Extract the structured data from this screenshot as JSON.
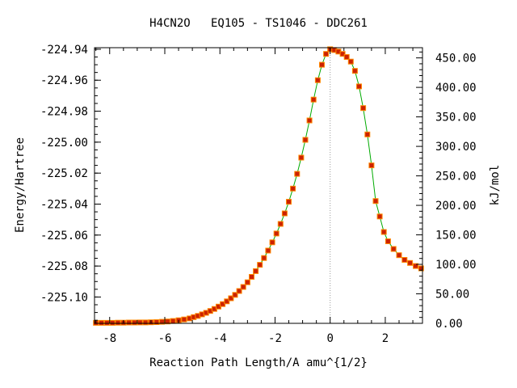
{
  "chart_data": {
    "type": "line",
    "title": "H4CN2O   EQ105 - TS1046 - DDC261",
    "xlabel": "Reaction Path Length/A amu^{1/2}",
    "ylabel": "Energy/Hartree",
    "y2label": "kJ/mol",
    "xlim": [
      -8.55,
      3.35
    ],
    "ylim": [
      -225.117,
      -224.939
    ],
    "y2lim": [
      0.0,
      467.3
    ],
    "x_ticks": [
      -8,
      -6,
      -4,
      -2,
      0,
      2
    ],
    "x_tick_labels": [
      "-8",
      "-6",
      "-4",
      "-2",
      "0",
      "2"
    ],
    "y_ticks": [
      -224.94,
      -224.96,
      -224.98,
      -225.0,
      -225.02,
      -225.04,
      -225.06,
      -225.08,
      -225.1
    ],
    "y_tick_labels": [
      "-224.94",
      "-224.96",
      "-224.98",
      "-225.00",
      "-225.02",
      "-225.04",
      "-225.06",
      "-225.08",
      "-225.10"
    ],
    "y2_ticks": [
      0,
      50,
      100,
      150,
      200,
      250,
      300,
      350,
      400,
      450
    ],
    "y2_tick_labels": [
      "0.00",
      "50.00",
      "100.00",
      "150.00",
      "200.00",
      "250.00",
      "300.00",
      "350.00",
      "400.00",
      "450.00"
    ],
    "ts_marker_x": 0,
    "grid": false,
    "legend": "none",
    "colors": {
      "line": "#00aa00",
      "marker": "#cc2200",
      "marker_edge": "#ff8800",
      "ts_line": "#999999",
      "axis": "#000000"
    },
    "series": [
      {
        "x": [
          -8.5,
          -8.3,
          -8.1,
          -7.9,
          -7.7,
          -7.5,
          -7.3,
          -7.1,
          -6.9,
          -6.7,
          -6.5,
          -6.3,
          -6.1,
          -5.9,
          -5.7,
          -5.5,
          -5.3,
          -5.1,
          -4.95,
          -4.8,
          -4.65,
          -4.5,
          -4.35,
          -4.2,
          -4.05,
          -3.9,
          -3.75,
          -3.6,
          -3.45,
          -3.3,
          -3.15,
          -3.0,
          -2.85,
          -2.7,
          -2.55,
          -2.4,
          -2.25,
          -2.1,
          -1.95,
          -1.8,
          -1.65,
          -1.5,
          -1.35,
          -1.2,
          -1.05,
          -0.9,
          -0.75,
          -0.6,
          -0.45,
          -0.3,
          -0.15,
          0.0,
          0.15,
          0.3,
          0.45,
          0.6,
          0.75,
          0.9,
          1.05,
          1.2,
          1.35,
          1.5,
          1.65,
          1.8,
          1.95,
          2.1,
          2.3,
          2.5,
          2.7,
          2.9,
          3.1,
          3.3
        ],
        "y": [
          -225.1167,
          -225.1167,
          -225.1167,
          -225.1167,
          -225.1166,
          -225.1166,
          -225.1165,
          -225.1165,
          -225.1164,
          -225.1164,
          -225.1163,
          -225.1162,
          -225.116,
          -225.1158,
          -225.1155,
          -225.115,
          -225.1145,
          -225.1138,
          -225.113,
          -225.1122,
          -225.1112,
          -225.1102,
          -225.109,
          -225.1077,
          -225.1062,
          -225.1046,
          -225.1028,
          -225.1008,
          -225.0986,
          -225.0961,
          -225.0935,
          -225.0905,
          -225.087,
          -225.0833,
          -225.0792,
          -225.0748,
          -225.07,
          -225.0647,
          -225.059,
          -225.0528,
          -225.046,
          -225.0385,
          -225.03,
          -225.0205,
          -225.01,
          -224.9985,
          -224.986,
          -224.9725,
          -224.96,
          -224.95,
          -224.943,
          -224.94,
          -224.9405,
          -224.9415,
          -224.943,
          -224.945,
          -224.948,
          -224.954,
          -224.964,
          -224.978,
          -224.995,
          -225.015,
          -225.038,
          -225.048,
          -225.058,
          -225.064,
          -225.069,
          -225.073,
          -225.076,
          -225.078,
          -225.08,
          -225.0815
        ]
      }
    ]
  }
}
